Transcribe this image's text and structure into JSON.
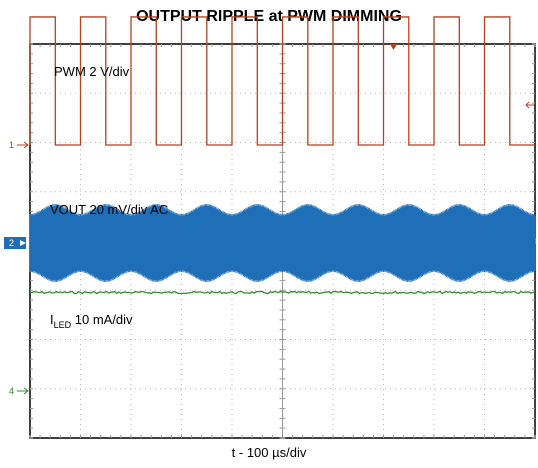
{
  "chart_data": {
    "type": "line",
    "title": "OUTPUT RIPPLE at PWM DIMMING",
    "xlabel": "t - 100 µs/div",
    "grid": true,
    "divisions": {
      "x": 10,
      "y": 8
    },
    "series": [
      {
        "label_main": "PWM 2 V/div",
        "color": "#b5421e",
        "channel": "1",
        "signal": "square",
        "high_level_div": 2.6,
        "low_level_div": 0.0,
        "period_div": 1.0,
        "duty": 0.5,
        "first_rise_div": 0.0
      },
      {
        "label_main": "VOUT 20 mV/div AC",
        "color": "#1f6fb8",
        "channel": "2",
        "signal": "ripple band",
        "center_div": 0.0,
        "half_width_div": [
          0.55,
          0.75
        ],
        "envelope_period_div": 1.0
      },
      {
        "label_main": "I",
        "label_sub": "LED",
        "label_rest": " 10 mA/div",
        "color": "#3a8a3a",
        "channel": "4",
        "signal": "flat",
        "level_div": 2.0
      }
    ]
  }
}
